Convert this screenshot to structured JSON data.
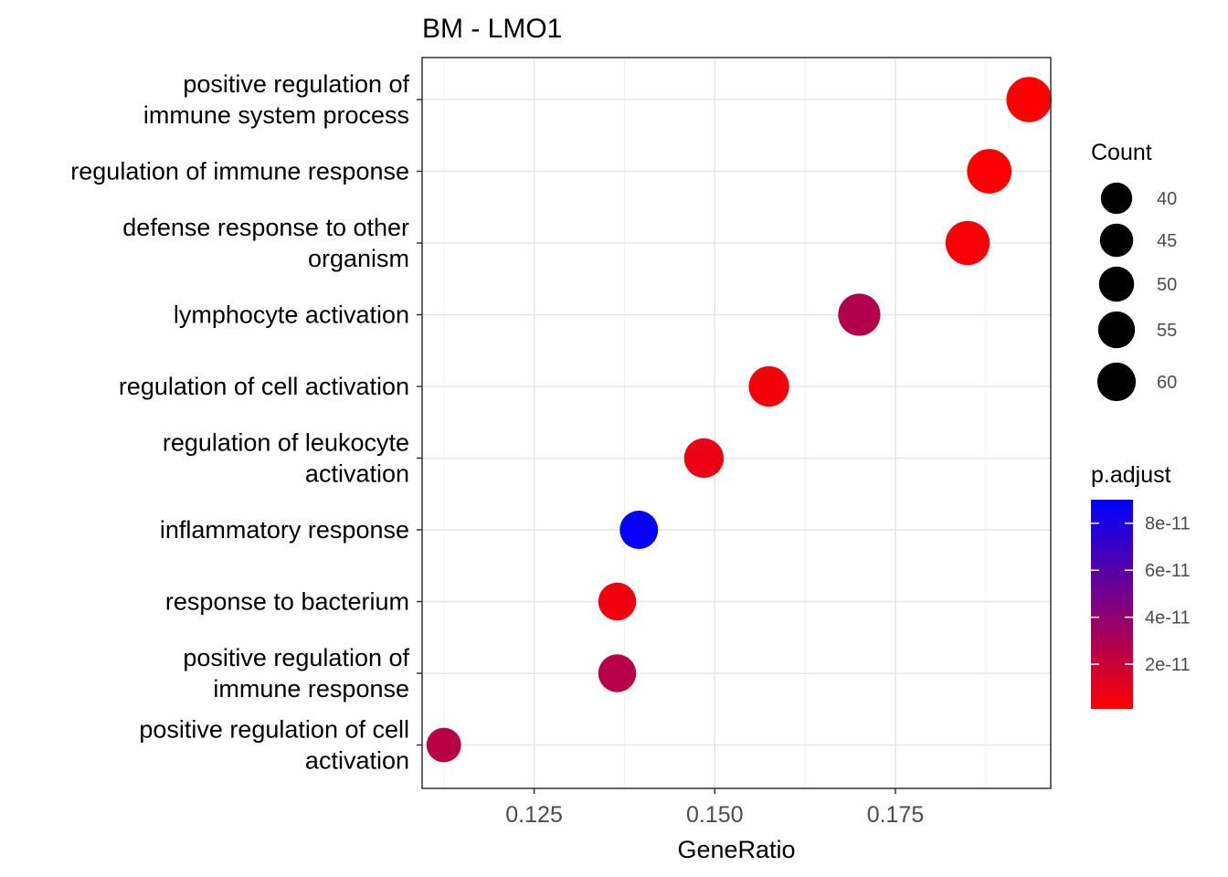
{
  "chart_data": {
    "type": "scatter",
    "title": "BM - LMO1",
    "xlabel": "GeneRatio",
    "ylabel": "",
    "xlim": [
      0.1095,
      0.1965
    ],
    "xticks": [
      "0.125",
      "0.150",
      "0.175"
    ],
    "xtick_values": [
      0.125,
      0.15,
      0.175
    ],
    "grid": true,
    "categories": [
      [
        "positive regulation of",
        "immune system process"
      ],
      [
        "regulation of immune response"
      ],
      [
        "defense response to other",
        "organism"
      ],
      [
        "lymphocyte activation"
      ],
      [
        "regulation of cell activation"
      ],
      [
        "regulation of leukocyte",
        "activation"
      ],
      [
        "inflammatory response"
      ],
      [
        "response to bacterium"
      ],
      [
        "positive regulation of",
        "immune response"
      ],
      [
        "positive regulation of cell",
        "activation"
      ]
    ],
    "points": [
      {
        "gene_ratio": 0.1935,
        "count": 60,
        "p_adjust": 1e-12
      },
      {
        "gene_ratio": 0.188,
        "count": 58,
        "p_adjust": 2e-12
      },
      {
        "gene_ratio": 0.185,
        "count": 57,
        "p_adjust": 3e-12
      },
      {
        "gene_ratio": 0.17,
        "count": 52,
        "p_adjust": 2.8e-11
      },
      {
        "gene_ratio": 0.1575,
        "count": 48,
        "p_adjust": 5e-12
      },
      {
        "gene_ratio": 0.1485,
        "count": 46,
        "p_adjust": 8e-12
      },
      {
        "gene_ratio": 0.1395,
        "count": 43,
        "p_adjust": 8.8e-11
      },
      {
        "gene_ratio": 0.1365,
        "count": 42,
        "p_adjust": 6e-12
      },
      {
        "gene_ratio": 0.1365,
        "count": 42,
        "p_adjust": 2.6e-11
      },
      {
        "gene_ratio": 0.1125,
        "count": 35,
        "p_adjust": 2.5e-11
      }
    ],
    "size_legend": {
      "title": "Count",
      "values": [
        40,
        45,
        50,
        55,
        60
      ]
    },
    "color_legend": {
      "title": "p.adjust",
      "tick_labels": [
        "8e-11",
        "6e-11",
        "4e-11",
        "2e-11"
      ],
      "tick_values": [
        8e-11,
        6e-11,
        4e-11,
        2e-11
      ],
      "range": [
        1e-12,
        9e-11
      ],
      "low_color": "#FF0000",
      "high_color": "#0000FF"
    }
  }
}
